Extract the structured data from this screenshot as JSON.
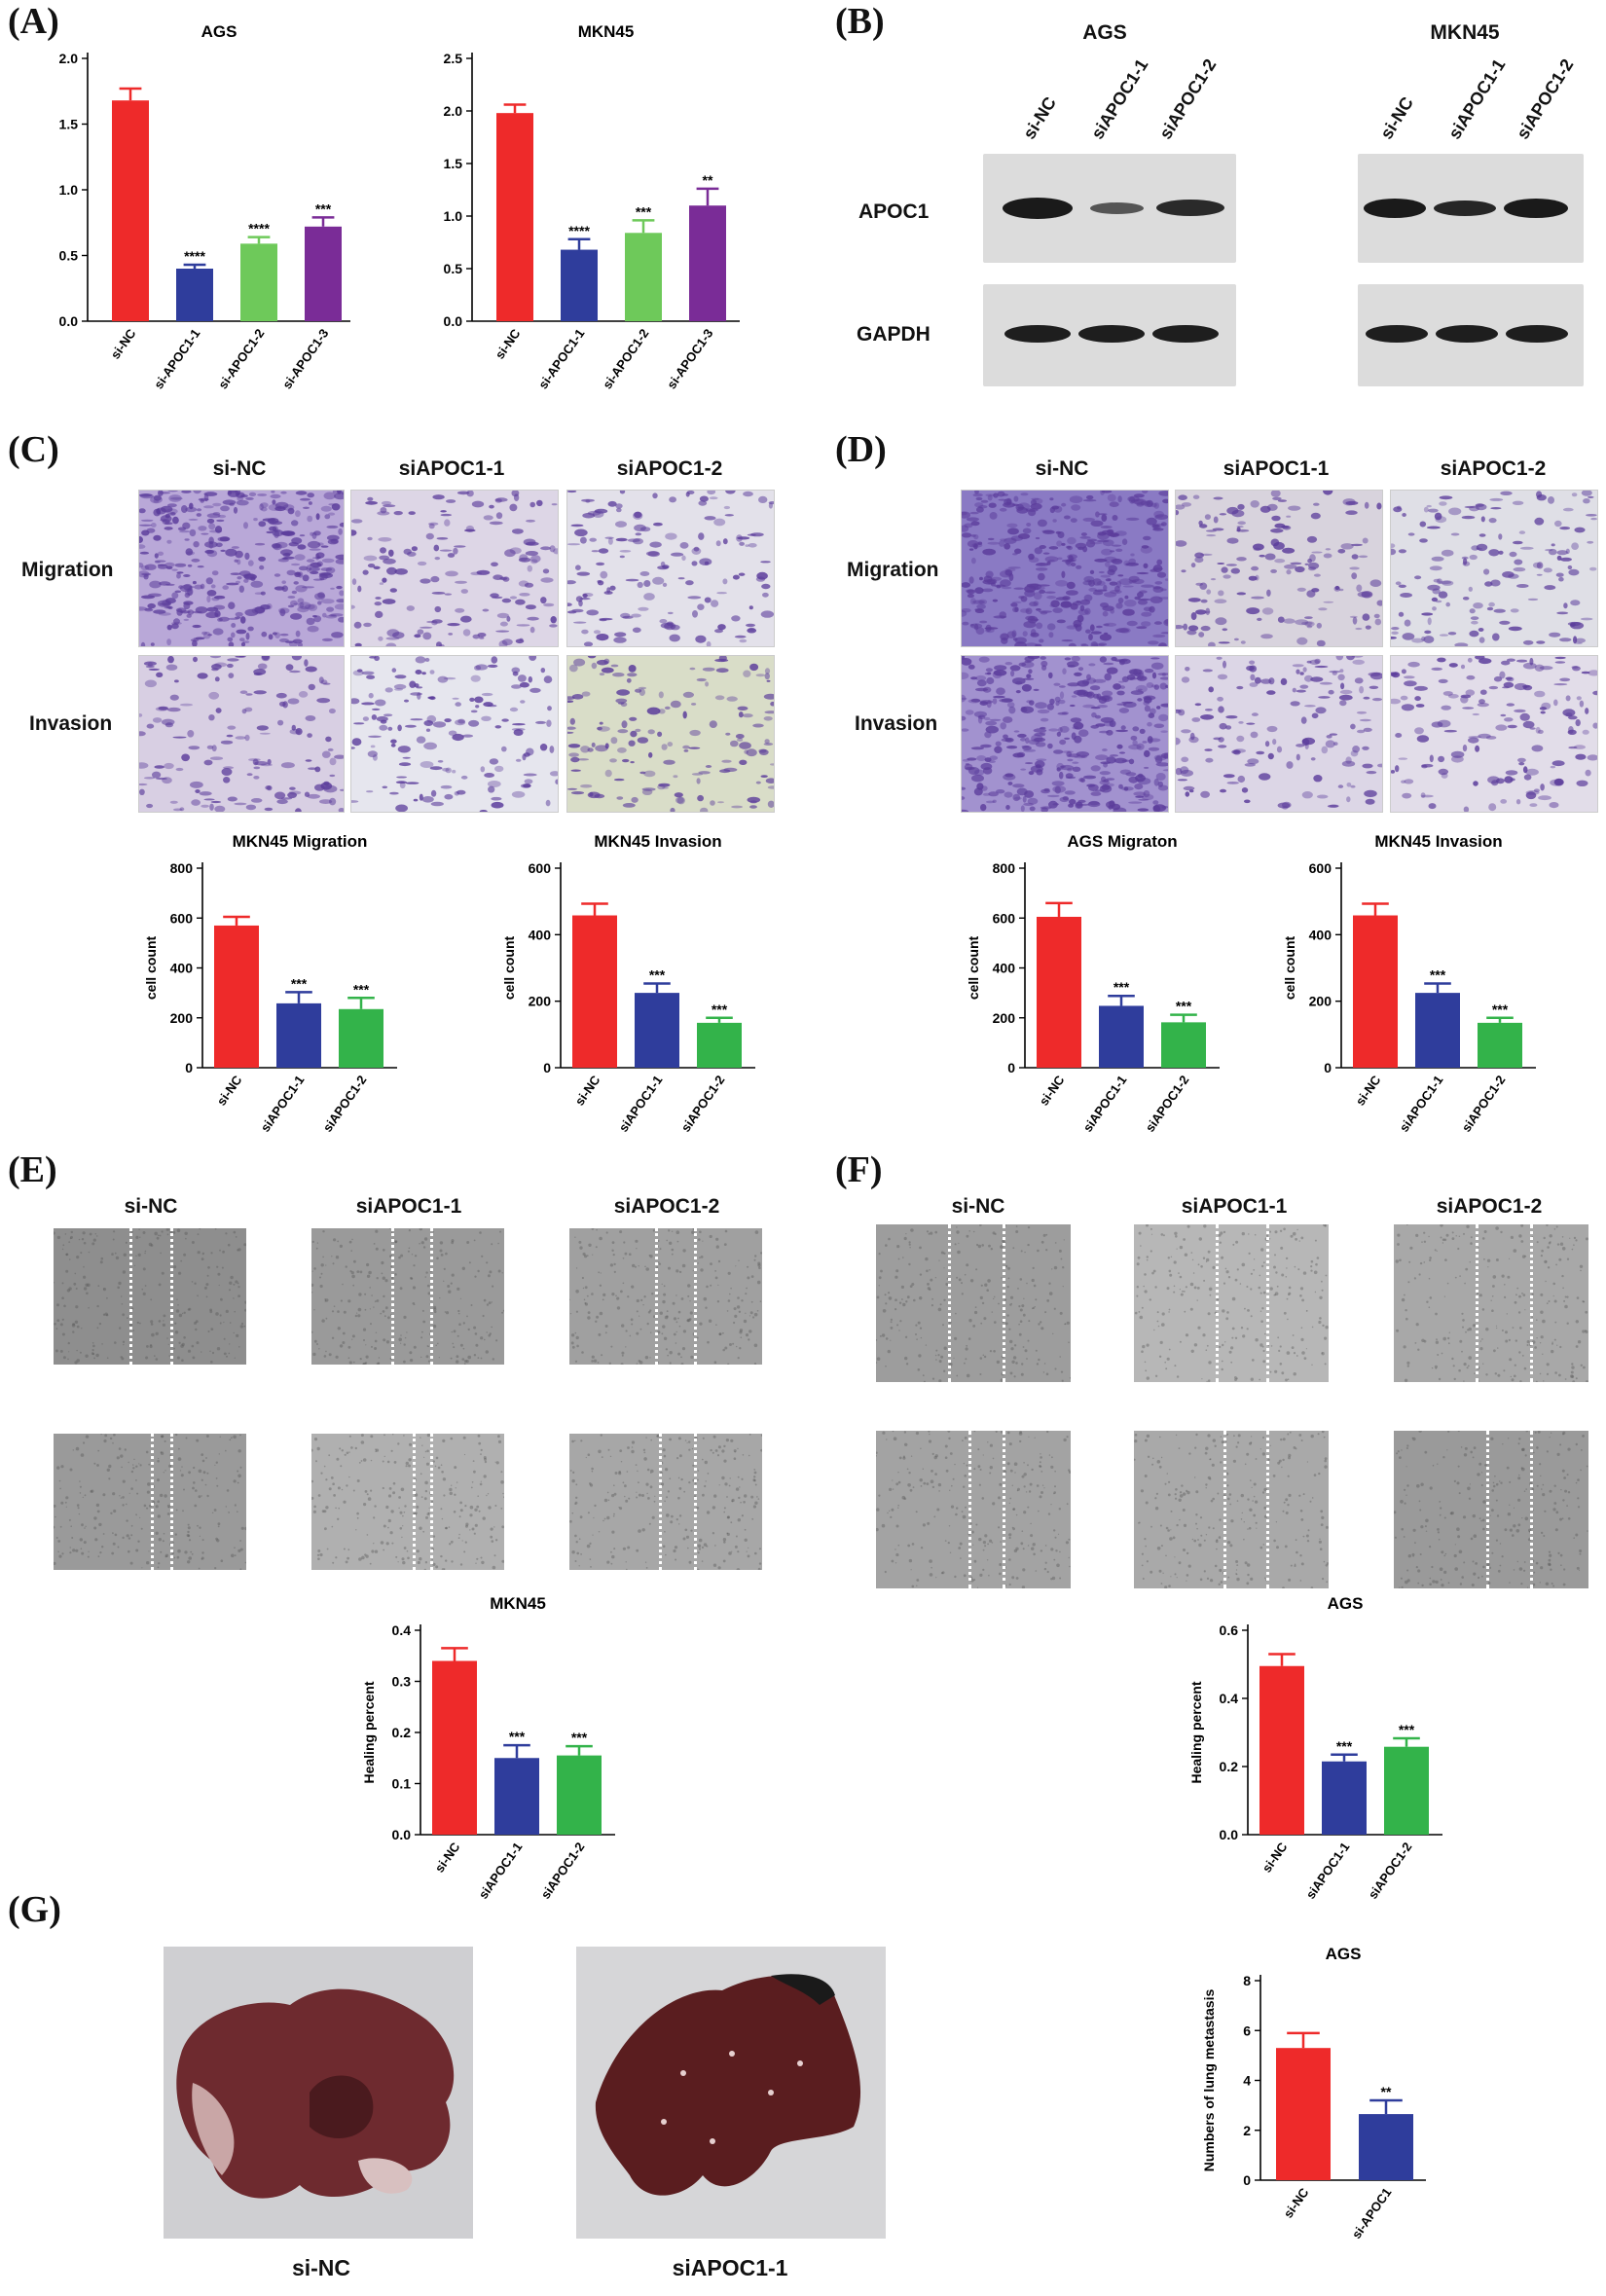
{
  "panels": {
    "A": {
      "label": "(A)",
      "charts": [
        {
          "title": "AGS",
          "ylim": [
            0,
            2.0
          ],
          "yticks": [
            "0.0",
            "0.5",
            "1.0",
            "1.5",
            "2.0"
          ],
          "categories": [
            "si-NC",
            "si-APOC1-1",
            "si-APOC1-2",
            "si-APOC1-3"
          ],
          "values": [
            1.68,
            0.4,
            0.59,
            0.72
          ],
          "errors": [
            0.09,
            0.03,
            0.05,
            0.07
          ],
          "significance": [
            "",
            "****",
            "****",
            "***"
          ],
          "colors": [
            "#ee2a2a",
            "#2f3d9c",
            "#6ec95a",
            "#7a2c97"
          ]
        },
        {
          "title": "MKN45",
          "ylim": [
            0,
            2.5
          ],
          "yticks": [
            "0.0",
            "0.5",
            "1.0",
            "1.5",
            "2.0",
            "2.5"
          ],
          "categories": [
            "si-NC",
            "si-APOC1-1",
            "si-APOC1-2",
            "si-APOC1-3"
          ],
          "values": [
            1.98,
            0.68,
            0.84,
            1.1
          ],
          "errors": [
            0.08,
            0.1,
            0.12,
            0.16
          ],
          "significance": [
            "",
            "****",
            "***",
            "**"
          ],
          "colors": [
            "#ee2a2a",
            "#2f3d9c",
            "#6ec95a",
            "#7a2c97"
          ]
        }
      ]
    },
    "B": {
      "label": "(B)",
      "cells": [
        "AGS",
        "MKN45"
      ],
      "lanes": [
        "si-NC",
        "siAPOC1-1",
        "siAPOC1-2"
      ],
      "proteins": [
        "APOC1",
        "GAPDH"
      ]
    },
    "C": {
      "label": "(C)",
      "columns": [
        "si-NC",
        "siAPOC1-1",
        "siAPOC1-2"
      ],
      "rows": [
        "Migration",
        "Invasion"
      ],
      "charts": [
        {
          "title": "MKN45  Migration",
          "ylabel": "cell count",
          "ylim": [
            0,
            800
          ],
          "yticks": [
            "0",
            "200",
            "400",
            "600",
            "800"
          ],
          "categories": [
            "si-NC",
            "siAPOC1-1",
            "siAPOC1-2"
          ],
          "values": [
            570,
            258,
            235
          ],
          "errors": [
            35,
            45,
            45
          ],
          "significance": [
            "",
            "***",
            "***"
          ],
          "colors": [
            "#ee2a2a",
            "#2f3d9c",
            "#33b34a"
          ]
        },
        {
          "title": "MKN45  Invasion",
          "ylabel": "cell count",
          "ylim": [
            0,
            600
          ],
          "yticks": [
            "0",
            "200",
            "400",
            "600"
          ],
          "categories": [
            "si-NC",
            "siAPOC1-1",
            "siAPOC1-2"
          ],
          "values": [
            458,
            225,
            135
          ],
          "errors": [
            35,
            28,
            15
          ],
          "significance": [
            "",
            "***",
            "***"
          ],
          "colors": [
            "#ee2a2a",
            "#2f3d9c",
            "#33b34a"
          ]
        }
      ]
    },
    "D": {
      "label": "(D)",
      "columns": [
        "si-NC",
        "siAPOC1-1",
        "siAPOC1-2"
      ],
      "rows": [
        "Migration",
        "Invasion"
      ],
      "charts": [
        {
          "title": "AGS Migraton",
          "ylabel": "cell count",
          "ylim": [
            0,
            800
          ],
          "yticks": [
            "0",
            "200",
            "400",
            "600",
            "800"
          ],
          "categories": [
            "si-NC",
            "siAPOC1-1",
            "siAPOC1-2"
          ],
          "values": [
            605,
            248,
            182
          ],
          "errors": [
            55,
            40,
            30
          ],
          "significance": [
            "",
            "***",
            "***"
          ],
          "colors": [
            "#ee2a2a",
            "#2f3d9c",
            "#33b34a"
          ]
        },
        {
          "title": "MKN45  Invasion",
          "ylabel": "cell count",
          "ylim": [
            0,
            600
          ],
          "yticks": [
            "0",
            "200",
            "400",
            "600"
          ],
          "categories": [
            "si-NC",
            "siAPOC1-1",
            "siAPOC1-2"
          ],
          "values": [
            458,
            225,
            135
          ],
          "errors": [
            35,
            28,
            15
          ],
          "significance": [
            "",
            "***",
            "***"
          ],
          "colors": [
            "#ee2a2a",
            "#2f3d9c",
            "#33b34a"
          ]
        }
      ]
    },
    "E": {
      "label": "(E)",
      "columns": [
        "si-NC",
        "siAPOC1-1",
        "siAPOC1-2"
      ],
      "chart": {
        "title": "MKN45",
        "ylabel": "Healing percent",
        "ylim": [
          0,
          0.4
        ],
        "yticks": [
          "0.0",
          "0.1",
          "0.2",
          "0.3",
          "0.4"
        ],
        "categories": [
          "si-NC",
          "siAPOC1-1",
          "siAPOC1-2"
        ],
        "values": [
          0.34,
          0.15,
          0.155
        ],
        "errors": [
          0.025,
          0.025,
          0.018
        ],
        "significance": [
          "",
          "***",
          "***"
        ],
        "colors": [
          "#ee2a2a",
          "#2f3d9c",
          "#33b34a"
        ]
      }
    },
    "F": {
      "label": "(F)",
      "columns": [
        "si-NC",
        "siAPOC1-1",
        "siAPOC1-2"
      ],
      "chart": {
        "title": "AGS",
        "ylabel": "Healing percent",
        "ylim": [
          0,
          0.6
        ],
        "yticks": [
          "0.0",
          "0.2",
          "0.4",
          "0.6"
        ],
        "categories": [
          "si-NC",
          "siAPOC1-1",
          "siAPOC1-2"
        ],
        "values": [
          0.495,
          0.215,
          0.258
        ],
        "errors": [
          0.035,
          0.02,
          0.025
        ],
        "significance": [
          "",
          "***",
          "***"
        ],
        "colors": [
          "#ee2a2a",
          "#2f3d9c",
          "#33b34a"
        ]
      }
    },
    "G": {
      "label": "(G)",
      "captions": [
        "si-NC",
        "siAPOC1-1"
      ],
      "chart": {
        "title": "AGS",
        "ylabel": "Numbers of lung metastasis",
        "ylim": [
          0,
          8
        ],
        "yticks": [
          "0",
          "2",
          "4",
          "6",
          "8"
        ],
        "categories": [
          "si-NC",
          "si-APOC1"
        ],
        "values": [
          5.3,
          2.65
        ],
        "errors": [
          0.6,
          0.55
        ],
        "significance": [
          "",
          "**"
        ],
        "colors": [
          "#ee2a2a",
          "#2f3d9c"
        ]
      }
    }
  },
  "chart_data": [
    {
      "type": "bar",
      "title": "AGS",
      "xlabel": "",
      "ylabel": "",
      "ylim": [
        0,
        2.0
      ],
      "categories": [
        "si-NC",
        "si-APOC1-1",
        "si-APOC1-2",
        "si-APOC1-3"
      ],
      "values": [
        1.68,
        0.4,
        0.59,
        0.72
      ]
    },
    {
      "type": "bar",
      "title": "MKN45",
      "xlabel": "",
      "ylabel": "",
      "ylim": [
        0,
        2.5
      ],
      "categories": [
        "si-NC",
        "si-APOC1-1",
        "si-APOC1-2",
        "si-APOC1-3"
      ],
      "values": [
        1.98,
        0.68,
        0.84,
        1.1
      ]
    },
    {
      "type": "bar",
      "title": "MKN45  Migration",
      "ylabel": "cell count",
      "ylim": [
        0,
        800
      ],
      "categories": [
        "si-NC",
        "siAPOC1-1",
        "siAPOC1-2"
      ],
      "values": [
        570,
        258,
        235
      ]
    },
    {
      "type": "bar",
      "title": "MKN45  Invasion",
      "ylabel": "cell count",
      "ylim": [
        0,
        600
      ],
      "categories": [
        "si-NC",
        "siAPOC1-1",
        "siAPOC1-2"
      ],
      "values": [
        458,
        225,
        135
      ]
    },
    {
      "type": "bar",
      "title": "AGS Migraton",
      "ylabel": "cell count",
      "ylim": [
        0,
        800
      ],
      "categories": [
        "si-NC",
        "siAPOC1-1",
        "siAPOC1-2"
      ],
      "values": [
        605,
        248,
        182
      ]
    },
    {
      "type": "bar",
      "title": "MKN45  Invasion",
      "ylabel": "cell count",
      "ylim": [
        0,
        600
      ],
      "categories": [
        "si-NC",
        "siAPOC1-1",
        "siAPOC1-2"
      ],
      "values": [
        458,
        225,
        135
      ]
    },
    {
      "type": "bar",
      "title": "MKN45",
      "ylabel": "Healing percent",
      "ylim": [
        0,
        0.4
      ],
      "categories": [
        "si-NC",
        "siAPOC1-1",
        "siAPOC1-2"
      ],
      "values": [
        0.34,
        0.15,
        0.155
      ]
    },
    {
      "type": "bar",
      "title": "AGS",
      "ylabel": "Healing percent",
      "ylim": [
        0,
        0.6
      ],
      "categories": [
        "si-NC",
        "siAPOC1-1",
        "siAPOC1-2"
      ],
      "values": [
        0.495,
        0.215,
        0.258
      ]
    },
    {
      "type": "bar",
      "title": "AGS",
      "ylabel": "Numbers of lung metastasis",
      "ylim": [
        0,
        8
      ],
      "categories": [
        "si-NC",
        "si-APOC1"
      ],
      "values": [
        5.3,
        2.65
      ]
    }
  ]
}
